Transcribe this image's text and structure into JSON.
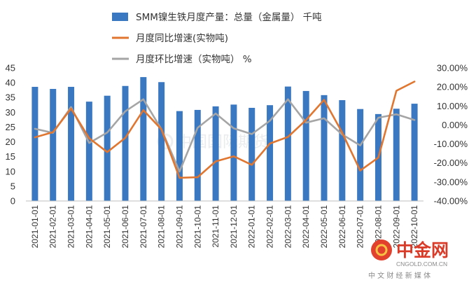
{
  "chart_data": {
    "type": "bar+line",
    "categories": [
      "2021-01-01",
      "2021-02-01",
      "2021-03-01",
      "2021-04-01",
      "2021-05-01",
      "2021-06-01",
      "2021-07-01",
      "2021-08-01",
      "2021-09-01",
      "2021-10-01",
      "2021-11-01",
      "2021-12-01",
      "2022-01-01",
      "2022-02-01",
      "2022-03-01",
      "2022-04-01",
      "2022-05-01",
      "2022-06-01",
      "2022-07-01",
      "2022-08-01",
      "2022-09-01",
      "2022-10-01"
    ],
    "series": [
      {
        "name": "SMM镍生铁月度产量：总量（金属量） 千吨",
        "type": "bar",
        "axis": "left",
        "color": "#3a78c2",
        "values": [
          38.6,
          37.9,
          38.6,
          33.6,
          35.6,
          38.9,
          41.9,
          40.2,
          30.4,
          30.8,
          32.0,
          32.6,
          31.5,
          32.4,
          38.7,
          37.2,
          35.8,
          34.1,
          31.1,
          29.4,
          31.2,
          32.9
        ]
      },
      {
        "name": "月度同比增速(实物吨)",
        "type": "line",
        "axis": "right",
        "color": "#e0762f",
        "values": [
          -6.5,
          -3.8,
          8.6,
          -7.0,
          -14.3,
          -6.8,
          7.8,
          -2.3,
          -27.8,
          -27.5,
          -19.2,
          -16.5,
          -21.0,
          -9.8,
          -6.3,
          2.6,
          13.2,
          -4.0,
          -24.0,
          -17.2,
          18.0,
          22.8
        ]
      },
      {
        "name": "月度环比增速（实物吨）%",
        "type": "line",
        "axis": "right",
        "color": "#a5a5a5",
        "values": [
          -2.0,
          -4.2,
          9.4,
          -9.5,
          -4.0,
          7.2,
          13.5,
          -2.3,
          -24.5,
          -1.5,
          6.0,
          -1.8,
          -4.8,
          2.2,
          13.5,
          1.2,
          3.5,
          -5.0,
          -10.8,
          3.8,
          5.6,
          2.6
        ]
      }
    ],
    "y_left": {
      "ylim": [
        0,
        45
      ],
      "ticks": [
        "0",
        "5",
        "10",
        "15",
        "20",
        "25",
        "30",
        "35",
        "40",
        "45"
      ]
    },
    "y_right": {
      "ylim": [
        -40,
        30
      ],
      "ticks": [
        "-40.00%",
        "-30.00%",
        "-20.00%",
        "-10.00%",
        "0.00%",
        "10.00%",
        "20.00%",
        "30.00%"
      ]
    },
    "grid": false,
    "legend": "top"
  },
  "legend": [
    {
      "label": "SMM镍生铁月度产量：总量（金属量） 千吨",
      "color": "#3a78c2",
      "kind": "bar"
    },
    {
      "label": "月度同比增速(实物吨)",
      "color": "#e0762f",
      "kind": "line"
    },
    {
      "label": "月度环比增速（实物吨） %",
      "color": "#a5a5a5",
      "kind": "line"
    }
  ],
  "watermarks": {
    "center": "中国国际期货",
    "logo_brand": "中金网",
    "logo_url": "CNGOLD.COM.CN",
    "logo_tagline": "中 文 财 经 新 媒 体"
  }
}
